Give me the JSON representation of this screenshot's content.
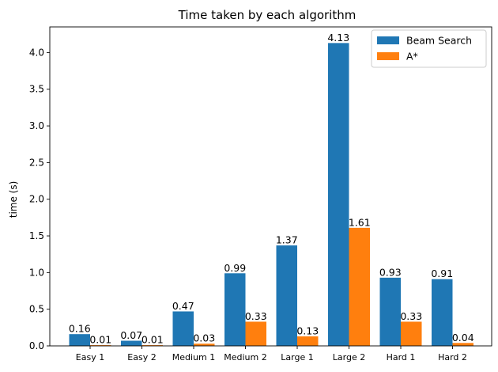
{
  "chart_data": {
    "type": "bar",
    "title": "Time taken by each algorithm",
    "xlabel": "",
    "ylabel": "time (s)",
    "ylim": [
      0,
      4.35
    ],
    "yticks": [
      "0.0",
      "0.5",
      "1.0",
      "1.5",
      "2.0",
      "2.5",
      "3.0",
      "3.5",
      "4.0"
    ],
    "categories": [
      "Easy 1",
      "Easy 2",
      "Medium 1",
      "Medium 2",
      "Large 1",
      "Large 2",
      "Hard 1",
      "Hard 2"
    ],
    "series": [
      {
        "name": "Beam Search",
        "color": "#1f77b4",
        "values": [
          0.16,
          0.07,
          0.47,
          0.99,
          1.37,
          4.13,
          0.93,
          0.91
        ],
        "labels": [
          "0.16",
          "0.07",
          "0.47",
          "0.99",
          "1.37",
          "4.13",
          "0.93",
          "0.91"
        ]
      },
      {
        "name": "A*",
        "color": "#ff7f0e",
        "values": [
          0.01,
          0.01,
          0.03,
          0.33,
          0.13,
          1.61,
          0.33,
          0.04
        ],
        "labels": [
          "0.01",
          "0.01",
          "0.03",
          "0.33",
          "0.13",
          "1.61",
          "0.33",
          "0.04"
        ]
      }
    ],
    "legend_position": "top-right",
    "grid": false
  }
}
